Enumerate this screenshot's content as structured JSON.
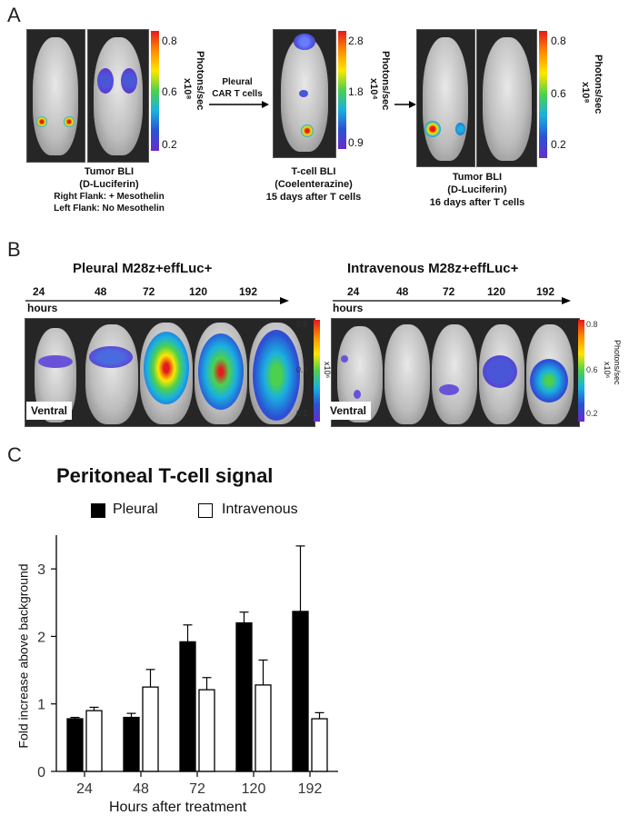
{
  "panels": {
    "a": "A",
    "b": "B",
    "c": "C"
  },
  "panel_a": {
    "left": {
      "caption1": "Tumor BLI",
      "caption2": "(D-Luciferin)",
      "caption3": "Right Flank: + Mesothelin",
      "caption4": "Left Flank: No Mesothelin",
      "scale_ticks": [
        "0.8",
        "0.6",
        "0.2"
      ],
      "scale_unit": "Photons/sec",
      "scale_mult": "x10⁸"
    },
    "arrow_label1": "Pleural",
    "arrow_label2": "CAR T cells",
    "middle": {
      "caption1": "T-cell BLI",
      "caption2": "(Coelenterazine)",
      "caption3": "15 days after T cells",
      "scale_ticks": [
        "2.8",
        "1.8",
        "0.9"
      ],
      "scale_unit": "Photons/sec",
      "scale_mult": "x10⁴"
    },
    "right": {
      "caption1": "Tumor BLI",
      "caption2": "(D-Luciferin)",
      "caption3": "16 days after T cells",
      "scale_ticks": [
        "0.8",
        "0.6",
        "0.2"
      ],
      "scale_unit": "Photons/sec",
      "scale_mult": "x10⁸"
    }
  },
  "panel_b": {
    "left_title": "Pleural M28z+effLuc+",
    "right_title": "Intravenous M28z+effLuc+",
    "timepoints": [
      "24",
      "48",
      "72",
      "120",
      "192"
    ],
    "hours": "hours",
    "ventral": "Ventral",
    "left_scale": {
      "ticks": [
        "0.8",
        "0.6",
        "0.2"
      ],
      "mult": "x10⁶"
    },
    "right_scale": {
      "ticks": [
        "0.8",
        "0.6",
        "0.2"
      ],
      "unit": "Photons/sec",
      "mult": "x10⁶"
    }
  },
  "chart_data": {
    "type": "bar",
    "title": "Peritoneal T-cell signal",
    "xlabel": "Hours after treatment",
    "ylabel": "Fold increase above background",
    "categories": [
      "24",
      "48",
      "72",
      "120",
      "192"
    ],
    "ylim": [
      0,
      3.5
    ],
    "yticks": [
      "0",
      "1",
      "2",
      "3"
    ],
    "legend_position": "top",
    "series": [
      {
        "name": "Pleural",
        "color": "#000000",
        "values": [
          0.78,
          0.8,
          1.92,
          2.2,
          2.37
        ],
        "errors": [
          0.02,
          0.06,
          0.25,
          0.16,
          0.97
        ]
      },
      {
        "name": "Intravenous",
        "color": "#ffffff",
        "values": [
          0.9,
          1.25,
          1.21,
          1.28,
          0.78
        ],
        "errors": [
          0.05,
          0.26,
          0.18,
          0.37,
          0.09
        ]
      }
    ]
  }
}
